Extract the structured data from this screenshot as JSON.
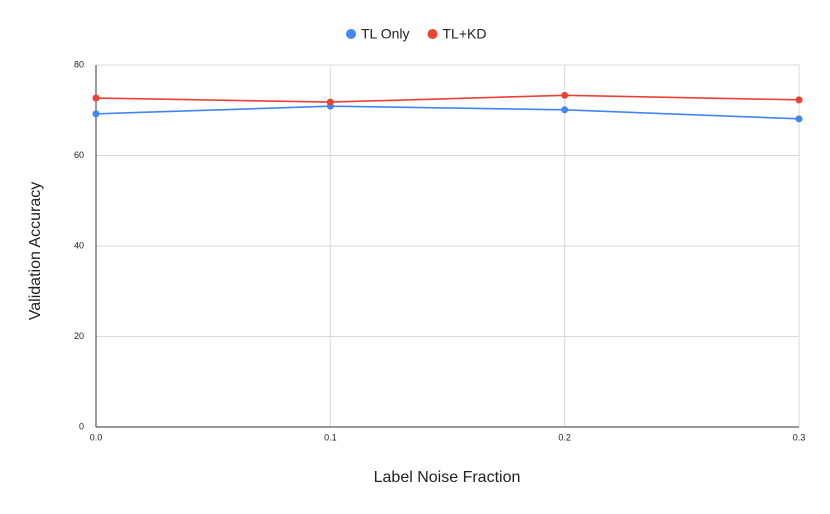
{
  "chart_data": {
    "type": "line",
    "x_label": "Label Noise Fraction",
    "y_label": "Validation Accuracy",
    "x": [
      0,
      0.1,
      0.2,
      0.3
    ],
    "series": [
      {
        "name": "TL Only",
        "color": "#4285f4",
        "values": [
          69.2,
          70.9,
          70.1,
          68.1
        ]
      },
      {
        "name": "TL+KD",
        "color": "#ea4335",
        "values": [
          72.7,
          71.8,
          73.3,
          72.3
        ]
      }
    ],
    "xlim": [
      0,
      0.3
    ],
    "xticks": [
      {
        "value": 0,
        "label": "0.0"
      },
      0.1,
      0.2,
      0.3
    ],
    "ylim": [
      0,
      80
    ],
    "yticks": [
      0,
      20,
      40,
      60,
      80
    ],
    "grid": true,
    "legend": "top"
  }
}
